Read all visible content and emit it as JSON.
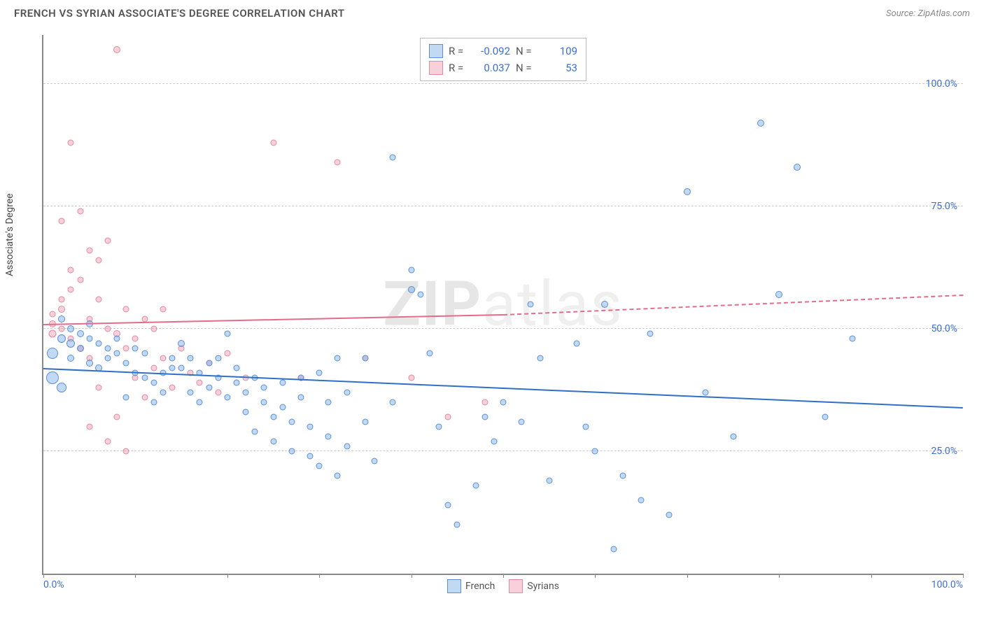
{
  "title": "FRENCH VS SYRIAN ASSOCIATE'S DEGREE CORRELATION CHART",
  "source": "Source: ZipAtlas.com",
  "ylabel": "Associate's Degree",
  "watermark": {
    "bold": "ZIP",
    "rest": "atlas"
  },
  "chart": {
    "type": "scatter",
    "xlim": [
      0,
      100
    ],
    "ylim": [
      0,
      110
    ],
    "x_ticks": [
      0,
      10,
      20,
      30,
      40,
      50,
      60,
      70,
      80,
      90,
      100
    ],
    "x_tick_labels": {
      "0": "0.0%",
      "100": "100.0%"
    },
    "y_gridlines": [
      25,
      50,
      75,
      100
    ],
    "y_tick_labels": {
      "25": "25.0%",
      "50": "50.0%",
      "75": "75.0%",
      "100": "100.0%"
    },
    "background_color": "#ffffff",
    "grid_color": "#cccccc",
    "axis_color": "#888888",
    "tick_label_color": "#3b6fd6"
  },
  "series": {
    "french": {
      "label": "French",
      "fill": "rgba(120,170,230,0.45)",
      "stroke": "#5a8fd6",
      "trend_color": "#2f6fc7",
      "R": "-0.092",
      "N": "109",
      "trend": {
        "x1": 0,
        "y1": 42,
        "x2": 100,
        "y2": 34,
        "dashed": false
      },
      "points": [
        [
          1,
          45,
          16
        ],
        [
          1,
          40,
          18
        ],
        [
          2,
          48,
          12
        ],
        [
          2,
          52,
          10
        ],
        [
          2,
          38,
          14
        ],
        [
          3,
          50,
          10
        ],
        [
          3,
          47,
          12
        ],
        [
          3,
          44,
          10
        ],
        [
          4,
          49,
          10
        ],
        [
          4,
          46,
          10
        ],
        [
          5,
          51,
          10
        ],
        [
          5,
          43,
          10
        ],
        [
          5,
          48,
          9
        ],
        [
          6,
          47,
          9
        ],
        [
          6,
          42,
          10
        ],
        [
          7,
          46,
          9
        ],
        [
          7,
          44,
          9
        ],
        [
          8,
          45,
          9
        ],
        [
          8,
          48,
          9
        ],
        [
          9,
          36,
          9
        ],
        [
          9,
          43,
          9
        ],
        [
          10,
          46,
          9
        ],
        [
          10,
          41,
          9
        ],
        [
          11,
          45,
          9
        ],
        [
          11,
          40,
          9
        ],
        [
          12,
          35,
          9
        ],
        [
          12,
          39,
          9
        ],
        [
          13,
          41,
          9
        ],
        [
          13,
          37,
          9
        ],
        [
          14,
          44,
          9
        ],
        [
          14,
          42,
          9
        ],
        [
          15,
          47,
          10
        ],
        [
          15,
          42,
          9
        ],
        [
          16,
          44,
          9
        ],
        [
          16,
          37,
          9
        ],
        [
          17,
          41,
          9
        ],
        [
          17,
          35,
          9
        ],
        [
          18,
          43,
          9
        ],
        [
          18,
          38,
          9
        ],
        [
          19,
          40,
          9
        ],
        [
          19,
          44,
          9
        ],
        [
          20,
          49,
          9
        ],
        [
          20,
          36,
          9
        ],
        [
          21,
          39,
          9
        ],
        [
          21,
          42,
          9
        ],
        [
          22,
          33,
          9
        ],
        [
          22,
          37,
          9
        ],
        [
          23,
          40,
          9
        ],
        [
          23,
          29,
          9
        ],
        [
          24,
          35,
          9
        ],
        [
          24,
          38,
          9
        ],
        [
          25,
          32,
          9
        ],
        [
          25,
          27,
          9
        ],
        [
          26,
          34,
          9
        ],
        [
          26,
          39,
          9
        ],
        [
          27,
          31,
          9
        ],
        [
          27,
          25,
          9
        ],
        [
          28,
          40,
          9
        ],
        [
          28,
          36,
          9
        ],
        [
          29,
          24,
          9
        ],
        [
          29,
          30,
          9
        ],
        [
          30,
          41,
          9
        ],
        [
          30,
          22,
          9
        ],
        [
          31,
          35,
          9
        ],
        [
          31,
          28,
          9
        ],
        [
          32,
          44,
          9
        ],
        [
          32,
          20,
          9
        ],
        [
          33,
          37,
          9
        ],
        [
          33,
          26,
          9
        ],
        [
          35,
          44,
          9
        ],
        [
          35,
          31,
          9
        ],
        [
          36,
          23,
          9
        ],
        [
          38,
          35,
          9
        ],
        [
          38,
          85,
          9
        ],
        [
          40,
          62,
          9
        ],
        [
          40,
          58,
          10
        ],
        [
          41,
          57,
          9
        ],
        [
          42,
          45,
          9
        ],
        [
          43,
          30,
          9
        ],
        [
          44,
          14,
          9
        ],
        [
          45,
          10,
          9
        ],
        [
          47,
          18,
          9
        ],
        [
          48,
          32,
          9
        ],
        [
          49,
          27,
          9
        ],
        [
          50,
          35,
          9
        ],
        [
          52,
          31,
          9
        ],
        [
          53,
          55,
          9
        ],
        [
          54,
          44,
          9
        ],
        [
          55,
          19,
          9
        ],
        [
          58,
          47,
          9
        ],
        [
          59,
          30,
          9
        ],
        [
          60,
          25,
          9
        ],
        [
          61,
          55,
          10
        ],
        [
          62,
          5,
          9
        ],
        [
          63,
          20,
          9
        ],
        [
          65,
          15,
          9
        ],
        [
          66,
          49,
          9
        ],
        [
          68,
          12,
          9
        ],
        [
          70,
          78,
          10
        ],
        [
          72,
          37,
          9
        ],
        [
          75,
          28,
          9
        ],
        [
          78,
          92,
          10
        ],
        [
          80,
          57,
          10
        ],
        [
          82,
          83,
          10
        ],
        [
          85,
          32,
          9
        ],
        [
          88,
          48,
          9
        ]
      ]
    },
    "syrians": {
      "label": "Syrians",
      "fill": "rgba(240,150,170,0.45)",
      "stroke": "#e08aa0",
      "trend_color": "#e56b8a",
      "R": "0.037",
      "N": "53",
      "trend_solid": {
        "x1": 0,
        "y1": 51,
        "x2": 50,
        "y2": 53
      },
      "trend_dash": {
        "x1": 50,
        "y1": 53,
        "x2": 100,
        "y2": 57
      },
      "points": [
        [
          1,
          51,
          10
        ],
        [
          1,
          49,
          11
        ],
        [
          1,
          53,
          9
        ],
        [
          2,
          54,
          10
        ],
        [
          2,
          50,
          9
        ],
        [
          2,
          56,
          9
        ],
        [
          2,
          72,
          9
        ],
        [
          3,
          48,
          9
        ],
        [
          3,
          88,
          9
        ],
        [
          3,
          62,
          9
        ],
        [
          3,
          58,
          9
        ],
        [
          4,
          46,
          9
        ],
        [
          4,
          74,
          9
        ],
        [
          4,
          60,
          9
        ],
        [
          5,
          66,
          9
        ],
        [
          5,
          52,
          9
        ],
        [
          5,
          44,
          9
        ],
        [
          5,
          30,
          9
        ],
        [
          6,
          56,
          9
        ],
        [
          6,
          64,
          9
        ],
        [
          6,
          38,
          9
        ],
        [
          7,
          50,
          9
        ],
        [
          7,
          68,
          9
        ],
        [
          7,
          27,
          9
        ],
        [
          8,
          49,
          10
        ],
        [
          8,
          32,
          9
        ],
        [
          8,
          107,
          10
        ],
        [
          9,
          54,
          9
        ],
        [
          9,
          46,
          9
        ],
        [
          9,
          25,
          9
        ],
        [
          10,
          48,
          9
        ],
        [
          10,
          40,
          9
        ],
        [
          11,
          52,
          9
        ],
        [
          11,
          36,
          9
        ],
        [
          12,
          50,
          9
        ],
        [
          12,
          42,
          9
        ],
        [
          13,
          44,
          9
        ],
        [
          13,
          54,
          9
        ],
        [
          14,
          38,
          9
        ],
        [
          15,
          46,
          9
        ],
        [
          16,
          41,
          9
        ],
        [
          17,
          39,
          9
        ],
        [
          18,
          43,
          9
        ],
        [
          19,
          37,
          9
        ],
        [
          20,
          45,
          9
        ],
        [
          22,
          40,
          9
        ],
        [
          25,
          88,
          9
        ],
        [
          28,
          40,
          9
        ],
        [
          32,
          84,
          9
        ],
        [
          35,
          44,
          9
        ],
        [
          40,
          40,
          9
        ],
        [
          44,
          32,
          9
        ],
        [
          48,
          35,
          9
        ]
      ]
    }
  },
  "legend_box": {
    "r_label": "R =",
    "n_label": "N ="
  },
  "bottom_legend": [
    "french",
    "syrians"
  ]
}
